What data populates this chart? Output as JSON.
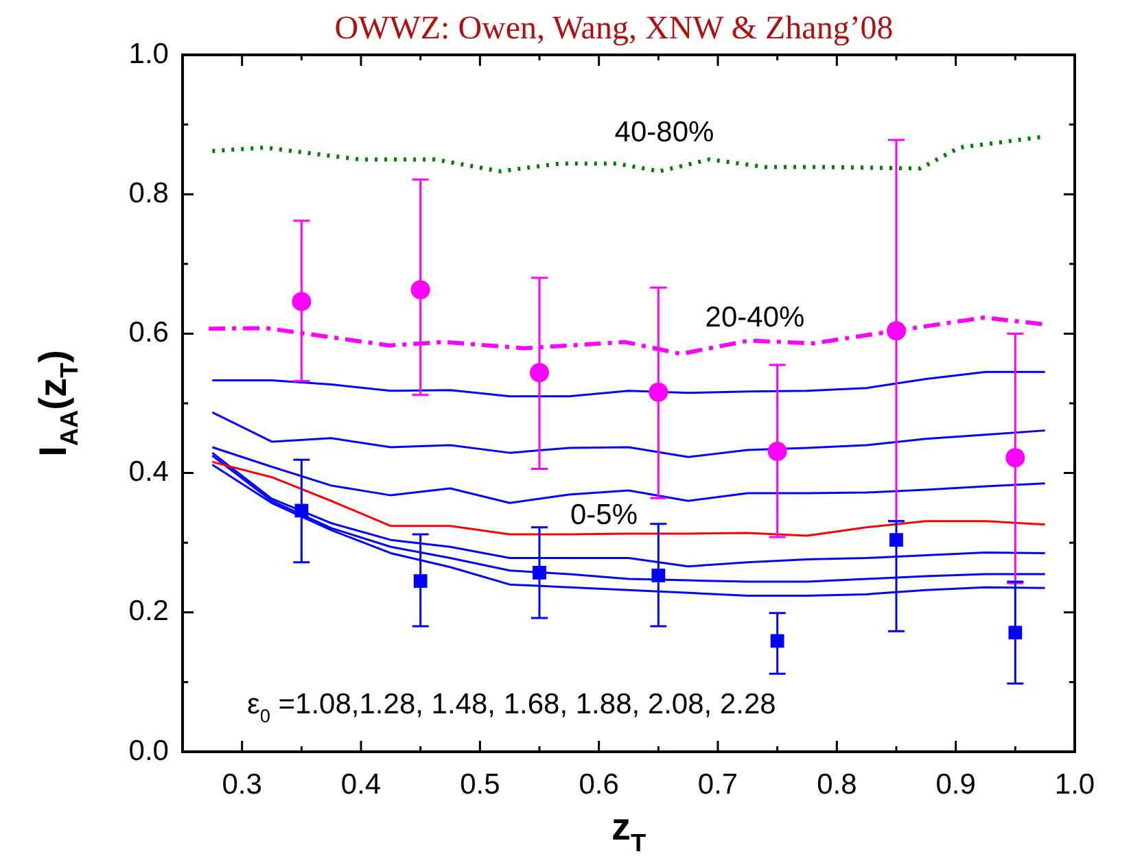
{
  "chart_data": {
    "type": "line",
    "title": "OWWZ: Owen, Wang, XNW & Zhang’08",
    "xlabel": "z$_{T}$",
    "ylabel": "I$_{AA}$(z$_{T}$)",
    "xlim": [
      0.25,
      1.0
    ],
    "ylim": [
      0.0,
      1.0
    ],
    "xticks": [
      {
        "value": 0.25,
        "label": null
      },
      0.3,
      {
        "value": 0.35,
        "label": null
      },
      0.4,
      {
        "value": 0.45,
        "label": null
      },
      0.5,
      {
        "value": 0.55,
        "label": null
      },
      0.6,
      {
        "value": 0.65,
        "label": null
      },
      0.7,
      {
        "value": 0.75,
        "label": null
      },
      0.8,
      {
        "value": 0.85,
        "label": null
      },
      0.9,
      {
        "value": 0.95,
        "label": null
      },
      {
        "value": 1.0,
        "label": "1.0"
      }
    ],
    "yticks": [
      {
        "value": 0.0,
        "label": "0.0"
      },
      {
        "value": 0.1,
        "label": null
      },
      0.2,
      {
        "value": 0.3,
        "label": null
      },
      0.4,
      {
        "value": 0.5,
        "label": null
      },
      0.6,
      {
        "value": 0.7,
        "label": null
      },
      0.8,
      {
        "value": 0.9,
        "label": null
      },
      {
        "value": 1.0,
        "label": "1.0"
      }
    ],
    "grid": false,
    "legend": false,
    "series": [
      {
        "type": "line",
        "color": "#008000",
        "line_style": "dotted",
        "marker": "none",
        "x": [
          0.275,
          0.319,
          0.399,
          0.462,
          0.517,
          0.567,
          0.615,
          0.651,
          0.693,
          0.74,
          0.79,
          0.87,
          0.903,
          0.976
        ],
        "values": [
          0.862,
          0.867,
          0.85,
          0.85,
          0.833,
          0.844,
          0.844,
          0.833,
          0.85,
          0.839,
          0.839,
          0.837,
          0.867,
          0.883
        ]
      },
      {
        "type": "line",
        "color": "#ff00ff",
        "line_style": "dashdot",
        "marker": "none",
        "x": [
          0.272,
          0.32,
          0.424,
          0.47,
          0.537,
          0.622,
          0.669,
          0.726,
          0.78,
          0.849,
          0.924,
          0.976
        ],
        "values": [
          0.607,
          0.608,
          0.583,
          0.588,
          0.579,
          0.588,
          0.571,
          0.59,
          0.586,
          0.604,
          0.623,
          0.613
        ]
      },
      {
        "type": "line",
        "color": "#0000ff",
        "line_style": "solid",
        "marker": "none",
        "x": [
          0.275,
          0.325,
          0.375,
          0.425,
          0.475,
          0.525,
          0.575,
          0.625,
          0.675,
          0.725,
          0.775,
          0.825,
          0.875,
          0.925,
          0.975
        ],
        "values": [
          0.533,
          0.533,
          0.527,
          0.518,
          0.519,
          0.51,
          0.51,
          0.518,
          0.515,
          0.517,
          0.518,
          0.522,
          0.535,
          0.545,
          0.545
        ]
      },
      {
        "type": "line",
        "color": "#0000ff",
        "line_style": "solid",
        "marker": "none",
        "x": [
          0.275,
          0.325,
          0.375,
          0.425,
          0.475,
          0.525,
          0.575,
          0.625,
          0.675,
          0.725,
          0.775,
          0.825,
          0.875,
          0.925,
          0.975
        ],
        "values": [
          0.487,
          0.445,
          0.45,
          0.437,
          0.44,
          0.429,
          0.436,
          0.437,
          0.423,
          0.433,
          0.436,
          0.44,
          0.449,
          0.455,
          0.461
        ]
      },
      {
        "type": "line",
        "color": "#0000ff",
        "line_style": "solid",
        "marker": "none",
        "x": [
          0.275,
          0.325,
          0.375,
          0.425,
          0.475,
          0.525,
          0.575,
          0.625,
          0.675,
          0.725,
          0.775,
          0.825,
          0.875,
          0.925,
          0.975
        ],
        "values": [
          0.437,
          0.409,
          0.382,
          0.368,
          0.378,
          0.357,
          0.369,
          0.375,
          0.36,
          0.371,
          0.371,
          0.372,
          0.376,
          0.381,
          0.385
        ]
      },
      {
        "type": "line",
        "color": "#ff0000",
        "line_style": "solid",
        "marker": "none",
        "x": [
          0.275,
          0.325,
          0.375,
          0.425,
          0.475,
          0.525,
          0.575,
          0.625,
          0.675,
          0.725,
          0.775,
          0.825,
          0.875,
          0.925,
          0.975
        ],
        "values": [
          0.416,
          0.394,
          0.36,
          0.324,
          0.324,
          0.312,
          0.312,
          0.313,
          0.313,
          0.314,
          0.31,
          0.322,
          0.331,
          0.331,
          0.326
        ]
      },
      {
        "type": "line",
        "color": "#0000ff",
        "line_style": "solid",
        "marker": "none",
        "x": [
          0.275,
          0.325,
          0.375,
          0.425,
          0.475,
          0.525,
          0.575,
          0.625,
          0.675,
          0.725,
          0.775,
          0.825,
          0.875,
          0.925,
          0.975
        ],
        "values": [
          0.429,
          0.363,
          0.328,
          0.304,
          0.294,
          0.278,
          0.278,
          0.278,
          0.266,
          0.272,
          0.276,
          0.278,
          0.282,
          0.286,
          0.285
        ]
      },
      {
        "type": "line",
        "color": "#0000ff",
        "line_style": "solid",
        "marker": "none",
        "x": [
          0.275,
          0.325,
          0.375,
          0.425,
          0.475,
          0.525,
          0.575,
          0.625,
          0.675,
          0.725,
          0.775,
          0.825,
          0.875,
          0.925,
          0.975
        ],
        "values": [
          0.425,
          0.36,
          0.321,
          0.294,
          0.278,
          0.26,
          0.255,
          0.248,
          0.246,
          0.244,
          0.244,
          0.248,
          0.252,
          0.255,
          0.255
        ]
      },
      {
        "type": "line",
        "color": "#0000ff",
        "line_style": "solid",
        "marker": "none",
        "x": [
          0.275,
          0.325,
          0.375,
          0.425,
          0.475,
          0.525,
          0.575,
          0.625,
          0.675,
          0.725,
          0.775,
          0.825,
          0.875,
          0.925,
          0.975
        ],
        "values": [
          0.412,
          0.357,
          0.318,
          0.285,
          0.265,
          0.24,
          0.236,
          0.232,
          0.228,
          0.224,
          0.224,
          0.226,
          0.232,
          0.236,
          0.235
        ]
      },
      {
        "type": "scatter",
        "color": "#ff00ff",
        "marker": "circle",
        "x": [
          0.35,
          0.45,
          0.55,
          0.65,
          0.75,
          0.85,
          0.95
        ],
        "values": [
          0.646,
          0.663,
          0.544,
          0.516,
          0.431,
          0.604,
          0.422
        ],
        "errors": [
          [
            0.532,
            0.762
          ],
          [
            0.512,
            0.821
          ],
          [
            0.406,
            0.68
          ],
          [
            0.364,
            0.666
          ],
          [
            0.308,
            0.555
          ],
          [
            0.331,
            0.878
          ],
          [
            0.242,
            0.6
          ]
        ]
      },
      {
        "type": "scatter",
        "color": "#0000ff",
        "marker": "square",
        "x": [
          0.35,
          0.45,
          0.55,
          0.65,
          0.75,
          0.85,
          0.95
        ],
        "values": [
          0.346,
          0.245,
          0.257,
          0.253,
          0.159,
          0.304,
          0.171
        ],
        "errors": [
          [
            0.272,
            0.419
          ],
          [
            0.18,
            0.312
          ],
          [
            0.192,
            0.322
          ],
          [
            0.18,
            0.327
          ],
          [
            0.112,
            0.199
          ],
          [
            0.173,
            0.331
          ],
          [
            0.098,
            0.244
          ]
        ]
      }
    ],
    "annotations": [
      "40-80%",
      "20-40%",
      "0-5%",
      "ε$_{0}$ =1.08,1.28, 1.48, 1.68, 1.88, 2.08, 2.28"
    ]
  }
}
